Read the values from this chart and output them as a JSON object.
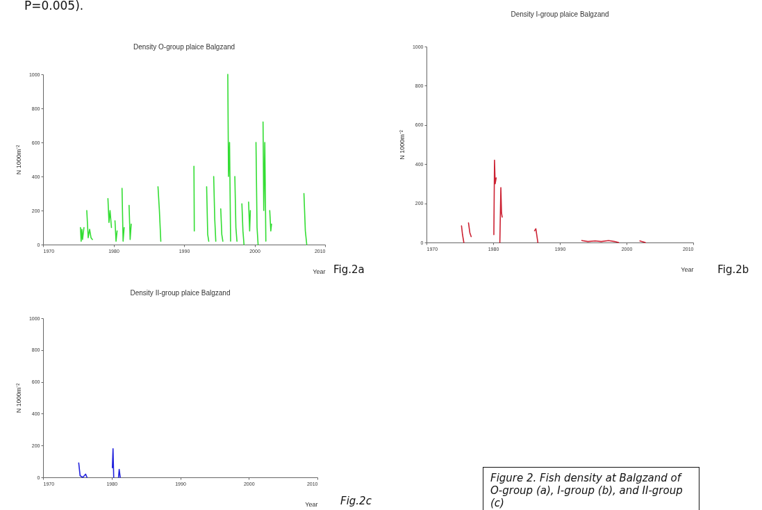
{
  "chart_data": [
    {
      "type": "line",
      "title": "Density O-group plaice Balgzand",
      "xlabel": "Year",
      "ylabel": "N 1000m⁻²",
      "x": [
        1975.3,
        1975.4,
        1975.5,
        1975.6,
        1975.8,
        1976.0,
        1976.2,
        1976.4,
        1976.6,
        1976.8,
        1977.0,
        1978.0,
        1979.2,
        1979.35,
        1979.5,
        1979.7,
        1980.0,
        1980.2,
        1980.35,
        1980.5,
        1980.8,
        1981.2,
        1981.35,
        1981.5,
        1981.8,
        1982.2,
        1982.35,
        1982.5,
        1984.0,
        1986.3,
        1986.5,
        1986.7,
        1989.0,
        1991.4,
        1991.45,
        1992.0,
        1993.2,
        1993.35,
        1993.5,
        1993.8,
        1994.2,
        1994.35,
        1994.5,
        1994.8,
        1995.2,
        1995.35,
        1995.5,
        1995.8,
        1996.2,
        1996.3,
        1996.45,
        1996.6,
        1996.8,
        1997.2,
        1997.35,
        1997.5,
        1997.8,
        1998.2,
        1998.35,
        1998.5,
        1998.8,
        1999.15,
        1999.3,
        1999.4,
        1999.8,
        2000.2,
        2000.35,
        2000.5,
        2000.8,
        2001.2,
        2001.3,
        2001.45,
        2001.6,
        2001.9,
        2002.15,
        2002.3,
        2002.4,
        2004.0,
        2007.0,
        2007.2,
        2007.4
      ],
      "series": [
        {
          "color": "#33dd33",
          "values": [
            100,
            20,
            90,
            30,
            100,
            null,
            200,
            40,
            90,
            40,
            30,
            null,
            270,
            130,
            200,
            100,
            null,
            140,
            20,
            80,
            null,
            330,
            20,
            100,
            null,
            230,
            30,
            120,
            null,
            340,
            200,
            20,
            null,
            460,
            80,
            null,
            340,
            60,
            20,
            null,
            400,
            150,
            20,
            null,
            210,
            60,
            20,
            null,
            1000,
            400,
            600,
            20,
            null,
            400,
            100,
            20,
            null,
            240,
            80,
            0,
            null,
            250,
            80,
            200,
            null,
            600,
            100,
            0,
            null,
            720,
            200,
            600,
            20,
            null,
            200,
            80,
            120,
            null,
            300,
            80,
            0
          ]
        }
      ],
      "xlim": [
        1970,
        2010
      ],
      "xticks": [
        1970,
        1980,
        1990,
        2000,
        2010
      ],
      "ylim": [
        0,
        1000
      ],
      "yticks": [
        0,
        200,
        400,
        600,
        800,
        1000
      ],
      "annotations": [
        "Fig.2a",
        "P=0.005)."
      ]
    },
    {
      "type": "line",
      "title": "Density I-group plaice Balgzand",
      "xlabel": "Year",
      "ylabel": "N 1000m⁻²",
      "x": [
        1975.25,
        1975.4,
        1975.6,
        1975.9,
        1976.3,
        1976.5,
        1976.7,
        1978.0,
        1980.1,
        1980.2,
        1980.3,
        1980.45,
        1980.7,
        1981.0,
        1981.15,
        1981.25,
        1981.35,
        1983.0,
        1986.2,
        1986.4,
        1986.7,
        1990.0,
        1993.3,
        1994.2,
        1995.3,
        1996.2,
        1997.3,
        1998.2,
        1998.8,
        2000.0,
        2002.0,
        2002.8
      ],
      "series": [
        {
          "color": "#cc2233",
          "values": [
            85,
            40,
            0,
            null,
            100,
            50,
            30,
            null,
            40,
            420,
            300,
            330,
            null,
            0,
            280,
            150,
            130,
            null,
            60,
            70,
            0,
            null,
            10,
            5,
            8,
            5,
            10,
            5,
            0,
            null,
            8,
            0
          ]
        }
      ],
      "xlim": [
        1970,
        2010
      ],
      "xticks": [
        1970,
        1980,
        1990,
        2000,
        2010
      ],
      "ylim": [
        0,
        1000
      ],
      "yticks": [
        0,
        200,
        400,
        600,
        800,
        1000
      ],
      "annotations": [
        "Fig.2b"
      ]
    },
    {
      "type": "line",
      "title": "Density II-group plaice Balgzand",
      "xlabel": "Year",
      "ylabel": "N 1000m⁻²",
      "x": [
        1975.2,
        1975.4,
        1975.8,
        1976.2,
        1976.4,
        1978.0,
        1980.1,
        1980.2,
        1980.3,
        1980.7,
        1981.0,
        1981.1,
        1981.25
      ],
      "series": [
        {
          "color": "#2222dd",
          "values": [
            90,
            10,
            0,
            20,
            0,
            null,
            60,
            180,
            0,
            null,
            0,
            50,
            0
          ]
        }
      ],
      "xlim": [
        1970,
        2010
      ],
      "xticks": [
        1970,
        1980,
        1990,
        2000,
        2010
      ],
      "ylim": [
        0,
        1000
      ],
      "yticks": [
        0,
        200,
        400,
        600,
        800,
        1000
      ],
      "annotations": [
        "Fig.2c",
        "Figure 2. Fish density at Balgzand of O-group (a), I-group (b), and II-group (c)"
      ]
    }
  ]
}
